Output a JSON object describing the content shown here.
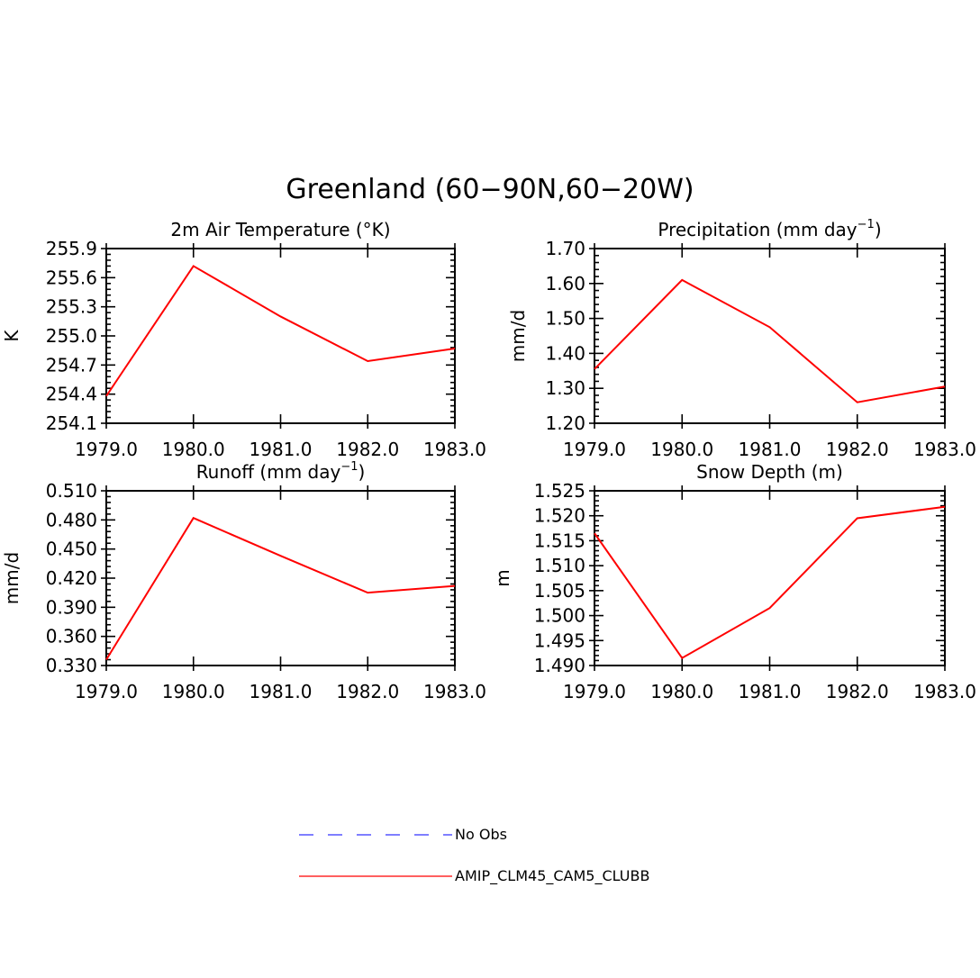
{
  "title": "Greenland (60−90N,60−20W)",
  "legend": [
    {
      "label": "No Obs",
      "color": "#3333ff",
      "style": "dashed"
    },
    {
      "label": "AMIP_CLM45_CAM5_CLUBB",
      "color": "#ff0000",
      "style": "solid"
    }
  ],
  "chart_data": [
    {
      "type": "line",
      "title": "2m Air Temperature (°K)",
      "ylabel": "K",
      "x": [
        1979,
        1980,
        1981,
        1982,
        1983
      ],
      "xlim": [
        1979,
        1983
      ],
      "xticks": [
        "1979.0",
        "1980.0",
        "1981.0",
        "1982.0",
        "1983.0"
      ],
      "ylim": [
        254.1,
        255.9
      ],
      "yticks": [
        "255.9",
        "255.6",
        "255.3",
        "255.0",
        "254.7",
        "254.4",
        "254.1"
      ],
      "series": [
        {
          "name": "AMIP_CLM45_CAM5_CLUBB",
          "color": "#ff0000",
          "values": [
            254.38,
            255.72,
            255.2,
            254.74,
            254.87
          ]
        }
      ]
    },
    {
      "type": "line",
      "title": "Precipitation (mm day",
      "title_sup": "−1",
      "title_end": ")",
      "ylabel": "mm/d",
      "x": [
        1979,
        1980,
        1981,
        1982,
        1983
      ],
      "xlim": [
        1979,
        1983
      ],
      "xticks": [
        "1979.0",
        "1980.0",
        "1981.0",
        "1982.0",
        "1983.0"
      ],
      "ylim": [
        1.2,
        1.7
      ],
      "yticks": [
        "1.70",
        "1.60",
        "1.50",
        "1.40",
        "1.30",
        "1.20"
      ],
      "series": [
        {
          "name": "AMIP_CLM45_CAM5_CLUBB",
          "color": "#ff0000",
          "values": [
            1.355,
            1.61,
            1.475,
            1.26,
            1.305
          ]
        }
      ]
    },
    {
      "type": "line",
      "title": "Runoff (mm day",
      "title_sup": "−1",
      "title_end": ")",
      "ylabel": "mm/d",
      "x": [
        1979,
        1980,
        1981,
        1982,
        1983
      ],
      "xlim": [
        1979,
        1983
      ],
      "xticks": [
        "1979.0",
        "1980.0",
        "1981.0",
        "1982.0",
        "1983.0"
      ],
      "ylim": [
        0.33,
        0.51
      ],
      "yticks": [
        "0.510",
        "0.480",
        "0.450",
        "0.420",
        "0.390",
        "0.360",
        "0.330"
      ],
      "series": [
        {
          "name": "AMIP_CLM45_CAM5_CLUBB",
          "color": "#ff0000",
          "values": [
            0.336,
            0.482,
            0.443,
            0.405,
            0.412
          ]
        }
      ]
    },
    {
      "type": "line",
      "title": "Snow Depth (m)",
      "ylabel": "m",
      "x": [
        1979,
        1980,
        1981,
        1982,
        1983
      ],
      "xlim": [
        1979,
        1983
      ],
      "xticks": [
        "1979.0",
        "1980.0",
        "1981.0",
        "1982.0",
        "1983.0"
      ],
      "ylim": [
        1.49,
        1.525
      ],
      "yticks": [
        "1.525",
        "1.520",
        "1.515",
        "1.510",
        "1.505",
        "1.500",
        "1.495",
        "1.490"
      ],
      "series": [
        {
          "name": "AMIP_CLM45_CAM5_CLUBB",
          "color": "#ff0000",
          "values": [
            1.5165,
            1.4915,
            1.5015,
            1.5195,
            1.5218
          ]
        }
      ]
    }
  ]
}
